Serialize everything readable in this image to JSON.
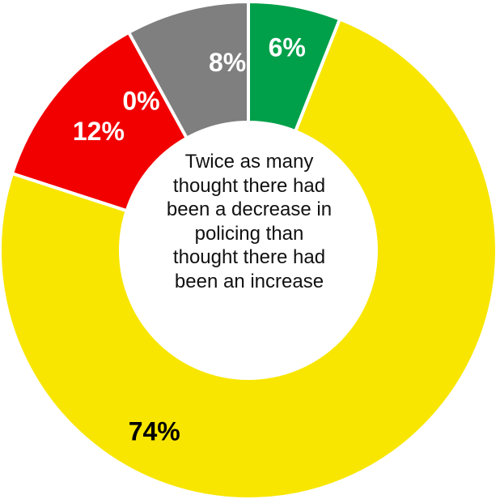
{
  "chart_data": {
    "type": "pie",
    "donut": true,
    "title": "",
    "slices": [
      {
        "label": "6%",
        "value": 6,
        "color": "#00A04A",
        "text_color": "#ffffff"
      },
      {
        "label": "74%",
        "value": 74,
        "color": "#F8E600",
        "text_color": "#000000"
      },
      {
        "label": "12%",
        "value": 12,
        "color": "#F20000",
        "text_color": "#ffffff"
      },
      {
        "label": "0%",
        "value": 0,
        "color": "#F20000",
        "text_color": "#ffffff"
      },
      {
        "label": "8%",
        "value": 8,
        "color": "#7F7F7F",
        "text_color": "#ffffff"
      }
    ],
    "center_annotation": "Twice as many\nthought there had\nbeen a decrease in\npolicing than\nthought there had\nbeen an increase"
  }
}
